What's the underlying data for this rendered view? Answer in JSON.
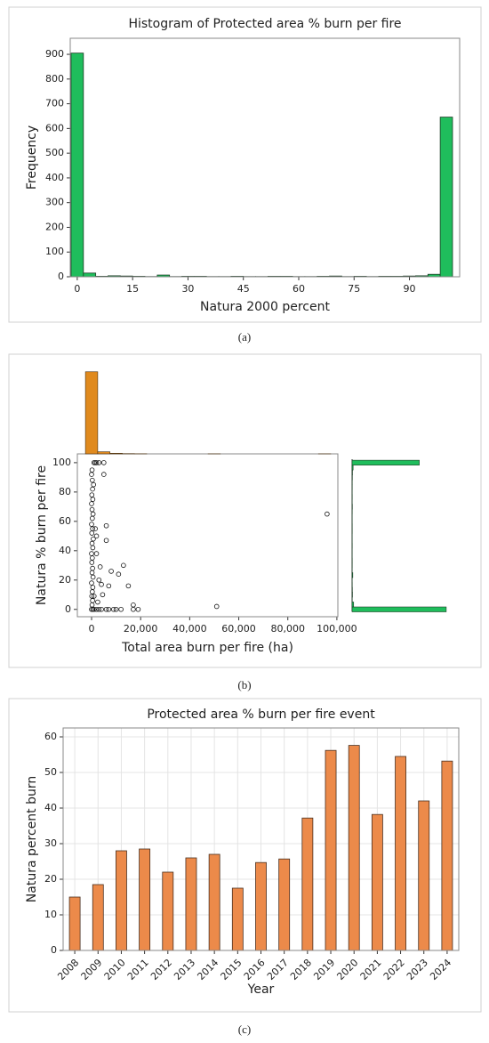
{
  "chart_data": [
    {
      "type": "histogram",
      "title": "Histogram of Protected area % burn per fire",
      "caption": "(a)",
      "xlabel": "Natura 2000 percent",
      "ylabel": "Frequency",
      "color": "#1fbd5c",
      "bins": [
        -1.67,
        1.67,
        5,
        8.33,
        11.67,
        15,
        18.33,
        21.67,
        25,
        28.33,
        31.67,
        35,
        38.33,
        41.67,
        45,
        48.33,
        51.67,
        55,
        58.33,
        61.67,
        65,
        68.33,
        71.67,
        75,
        78.33,
        81.67,
        85,
        88.33,
        91.67,
        95,
        98.33,
        101.67
      ],
      "counts": [
        905,
        15,
        2,
        4,
        3,
        2,
        1,
        7,
        1,
        2,
        2,
        1,
        1,
        2,
        1,
        1,
        2,
        2,
        1,
        1,
        2,
        3,
        1,
        2,
        1,
        2,
        2,
        3,
        4,
        10,
        646
      ],
      "xlim": [
        -1.9,
        103.6
      ],
      "xticks": [
        0,
        15,
        30,
        45,
        60,
        75,
        90
      ],
      "ylim": [
        0,
        965
      ],
      "yticks": [
        0,
        100,
        200,
        300,
        400,
        500,
        600,
        700,
        800,
        900
      ]
    },
    {
      "type": "scatter",
      "caption": "(b)",
      "xlabel": "Total area burn per fire (ha)",
      "ylabel": "Natura % burn per fire",
      "x": [
        0,
        200,
        400,
        100,
        300,
        500,
        0,
        600,
        200,
        400,
        100,
        300,
        0,
        500,
        200,
        700,
        100,
        400,
        0,
        300,
        600,
        200,
        0,
        500,
        100,
        400,
        800,
        300,
        0,
        200,
        1000,
        1500,
        2000,
        3000,
        500,
        1000,
        2000,
        3000,
        4000,
        5000,
        5000,
        6000,
        6000,
        7000,
        8000,
        9000,
        10000,
        11000,
        12000,
        13000,
        15000,
        17000,
        17000,
        19000,
        51000,
        96000,
        4000,
        3000,
        3500,
        2500,
        4500,
        6000,
        7000,
        2000,
        2000,
        1500,
        1000
      ],
      "y": [
        0,
        3,
        6,
        9,
        12,
        15,
        18,
        22,
        25,
        28,
        32,
        35,
        38,
        42,
        45,
        48,
        52,
        55,
        58,
        62,
        65,
        68,
        72,
        75,
        78,
        82,
        85,
        88,
        92,
        95,
        100,
        100,
        100,
        100,
        0,
        0,
        0,
        0,
        0,
        100,
        92,
        57,
        47,
        16,
        26,
        0,
        0,
        24,
        0,
        30,
        16,
        3,
        0,
        0,
        2,
        65,
        17,
        20,
        29,
        5,
        10,
        0,
        0,
        50,
        38,
        55,
        9
      ],
      "xlim": [
        -5800,
        100400
      ],
      "xticks": [
        0,
        {
          "value": 20000,
          "label": "20,000"
        },
        {
          "value": 40000,
          "label": "40,000"
        },
        {
          "value": 60000,
          "label": "60,000"
        },
        {
          "value": 80000,
          "label": "80,000"
        },
        {
          "value": 100000,
          "label": "100,000"
        }
      ],
      "ylim": [
        -5,
        106
      ],
      "yticks": [
        0,
        20,
        40,
        60,
        80,
        100
      ],
      "marginal_x": {
        "type": "histogram",
        "color": "#e08a1e",
        "bins": [
          -2500,
          2500,
          7500,
          12500,
          17500,
          22500,
          27500,
          32500,
          37500,
          42500,
          47500,
          52500,
          57500,
          62500,
          67500,
          72500,
          77500,
          82500,
          87500,
          92500,
          97500,
          102500
        ],
        "counts": [
          1570,
          40,
          12,
          5,
          2,
          0,
          0,
          0,
          0,
          0,
          1,
          0,
          0,
          0,
          0,
          0,
          0,
          0,
          0,
          1,
          0
        ],
        "ylim": [
          0,
          1600
        ]
      },
      "marginal_y": {
        "type": "histogram",
        "color": "#1fbd5c",
        "bins": [
          -1.67,
          1.67,
          5,
          8.33,
          11.67,
          15,
          18.33,
          21.67,
          25,
          28.33,
          31.67,
          35,
          38.33,
          41.67,
          45,
          48.33,
          51.67,
          55,
          58.33,
          61.67,
          65,
          68.33,
          71.67,
          75,
          78.33,
          81.67,
          85,
          88.33,
          91.67,
          95,
          98.33,
          101.67
        ],
        "counts": [
          905,
          15,
          2,
          4,
          3,
          2,
          1,
          7,
          1,
          2,
          2,
          1,
          1,
          2,
          1,
          1,
          2,
          2,
          1,
          1,
          2,
          3,
          1,
          2,
          1,
          2,
          2,
          3,
          4,
          10,
          646
        ],
        "xlim": [
          0,
          940
        ]
      }
    },
    {
      "type": "bar",
      "title": "Protected area % burn per fire event",
      "caption": "(c)",
      "xlabel": "Year",
      "ylabel": "Natura percent burn",
      "color": "#ec8a4a",
      "grid": true,
      "categories": [
        "2008",
        "2009",
        "2010",
        "2011",
        "2012",
        "2013",
        "2014",
        "2015",
        "2016",
        "2017",
        "2018",
        "2019",
        "2020",
        "2021",
        "2022",
        "2023",
        "2024"
      ],
      "values": [
        15,
        18.5,
        28,
        28.5,
        22,
        26,
        27,
        17.5,
        24.7,
        25.7,
        37.2,
        56.2,
        57.6,
        38.2,
        54.5,
        42,
        53.2
      ],
      "ylim": [
        0,
        62.5
      ],
      "yticks": [
        0,
        10,
        20,
        30,
        40,
        50,
        60
      ]
    }
  ]
}
